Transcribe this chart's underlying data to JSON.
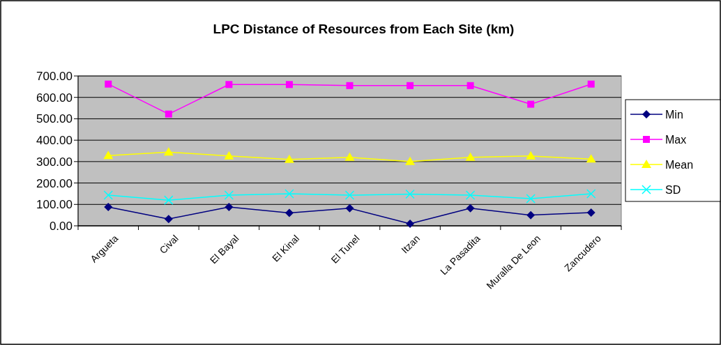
{
  "chart_data": {
    "type": "line",
    "title": "LPC Distance of Resources from Each Site (km)",
    "categories": [
      "Argueta",
      "Cival",
      "El Bayal",
      "El Kinal",
      "El Tunel",
      "Itzan",
      "La Pasadita",
      "Muralla De Leon",
      "Zancudero"
    ],
    "series": [
      {
        "name": "Min",
        "color": "#000080",
        "marker": "diamond",
        "values": [
          88,
          32,
          88,
          60,
          82,
          10,
          82,
          50,
          62
        ]
      },
      {
        "name": "Max",
        "color": "#ff00ff",
        "marker": "square",
        "values": [
          662,
          522,
          660,
          660,
          655,
          655,
          655,
          568,
          662
        ]
      },
      {
        "name": "Mean",
        "color": "#ffff00",
        "marker": "triangle",
        "values": [
          328,
          344,
          326,
          310,
          320,
          300,
          320,
          326,
          312
        ]
      },
      {
        "name": "SD",
        "color": "#00ffff",
        "marker": "cross",
        "values": [
          143,
          120,
          143,
          150,
          143,
          148,
          143,
          127,
          150
        ]
      }
    ],
    "ylim": [
      0,
      700
    ],
    "yticks": [
      {
        "value": 0,
        "label": "0.00"
      },
      {
        "value": 100,
        "label": "100.00"
      },
      {
        "value": 200,
        "label": "200.00"
      },
      {
        "value": 300,
        "label": "300.00"
      },
      {
        "value": 400,
        "label": "400.00"
      },
      {
        "value": 500,
        "label": "500.00"
      },
      {
        "value": 600,
        "label": "600.00"
      },
      {
        "value": 700,
        "label": "700.00"
      }
    ],
    "grid": "y",
    "legend": "right"
  }
}
